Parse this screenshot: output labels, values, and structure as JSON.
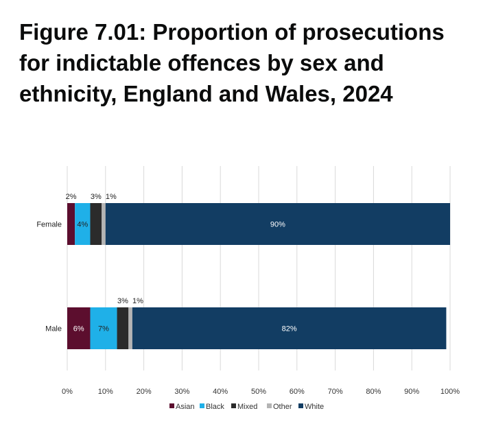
{
  "title": "Figure 7.01: Proportion of prosecutions for indictable offences by sex and ethnicity, England and Wales, 2024",
  "chart_data": {
    "type": "bar",
    "orientation": "horizontal",
    "stacked": true,
    "title": "Figure 7.01: Proportion of prosecutions for indictable offences by sex and ethnicity, England and Wales, 2024",
    "xlabel": "",
    "ylabel": "",
    "xlim": [
      0,
      100
    ],
    "x_ticks": [
      "0%",
      "10%",
      "20%",
      "30%",
      "40%",
      "50%",
      "60%",
      "70%",
      "80%",
      "90%",
      "100%"
    ],
    "categories": [
      "Female",
      "Male"
    ],
    "series": [
      {
        "name": "Asian",
        "color": "#5c0e2e",
        "values": [
          2,
          6
        ],
        "labels": [
          "2%",
          "6%"
        ]
      },
      {
        "name": "Black",
        "color": "#1fb0e8",
        "values": [
          4,
          7
        ],
        "labels": [
          "4%",
          "7%"
        ]
      },
      {
        "name": "Mixed",
        "color": "#2b2b2b",
        "values": [
          3,
          3
        ],
        "labels": [
          "3%",
          "3%"
        ]
      },
      {
        "name": "Other",
        "color": "#b4b4b4",
        "values": [
          1,
          1
        ],
        "labels": [
          "1%",
          "1%"
        ]
      },
      {
        "name": "White",
        "color": "#123d63",
        "values": [
          90,
          82
        ],
        "labels": [
          "90%",
          "82%"
        ]
      }
    ],
    "grid": true,
    "legend_position": "bottom"
  }
}
